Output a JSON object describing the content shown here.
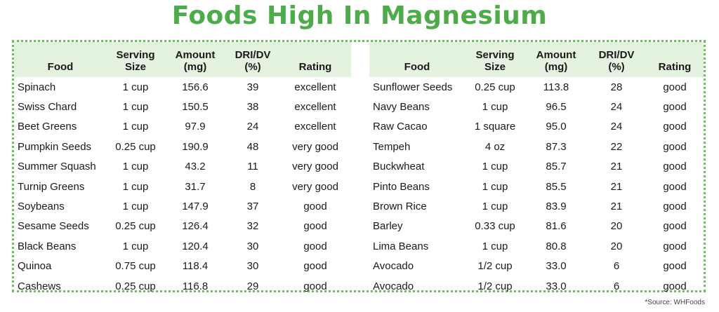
{
  "title": "Foods High In Magnesium",
  "source": "*Source: WHFoods",
  "colors": {
    "title": "#4dab4a",
    "header_bg": "#e4f2e0",
    "border": "#6cbf5c"
  },
  "headers": {
    "food": "Food",
    "serving_line1": "Serving",
    "serving_line2": "Size",
    "amount_line1": "Amount",
    "amount_line2": "(mg)",
    "dri_line1": "DRI/DV",
    "dri_line2": "(%)",
    "rating": "Rating"
  },
  "left_rows": [
    [
      "Spinach",
      "1 cup",
      "156.6",
      "39",
      "excellent"
    ],
    [
      "Swiss Chard",
      "1 cup",
      "150.5",
      "38",
      "excellent"
    ],
    [
      "Beet Greens",
      "1 cup",
      "97.9",
      "24",
      "excellent"
    ],
    [
      "Pumpkin Seeds",
      "0.25 cup",
      "190.9",
      "48",
      "very good"
    ],
    [
      "Summer Squash",
      "1 cup",
      "43.2",
      "11",
      "very good"
    ],
    [
      "Turnip Greens",
      "1 cup",
      "31.7",
      "8",
      "very good"
    ],
    [
      "Soybeans",
      "1 cup",
      "147.9",
      "37",
      "good"
    ],
    [
      "Sesame Seeds",
      "0.25 cup",
      "126.4",
      "32",
      "good"
    ],
    [
      "Black Beans",
      "1 cup",
      "120.4",
      "30",
      "good"
    ],
    [
      "Quinoa",
      "0.75 cup",
      "118.4",
      "30",
      "good"
    ],
    [
      "Cashews",
      "0.25 cup",
      "116.8",
      "29",
      "good"
    ]
  ],
  "right_rows": [
    [
      "Sunflower Seeds",
      "0.25 cup",
      "113.8",
      "28",
      "good"
    ],
    [
      "Navy Beans",
      "1 cup",
      "96.5",
      "24",
      "good"
    ],
    [
      "Raw Cacao",
      "1 square",
      "95.0",
      "24",
      "good"
    ],
    [
      "Tempeh",
      "4 oz",
      "87.3",
      "22",
      "good"
    ],
    [
      "Buckwheat",
      "1 cup",
      "85.7",
      "21",
      "good"
    ],
    [
      "Pinto Beans",
      "1 cup",
      "85.5",
      "21",
      "good"
    ],
    [
      "Brown Rice",
      "1 cup",
      "83.9",
      "21",
      "good"
    ],
    [
      "Barley",
      "0.33 cup",
      "81.6",
      "20",
      "good"
    ],
    [
      "Lima Beans",
      "1 cup",
      "80.8",
      "20",
      "good"
    ],
    [
      "Avocado",
      "1/2 cup",
      "33.0",
      "6",
      "good"
    ],
    [
      "Avocado",
      "1/2 cup",
      "33.0",
      "6",
      "good"
    ]
  ]
}
